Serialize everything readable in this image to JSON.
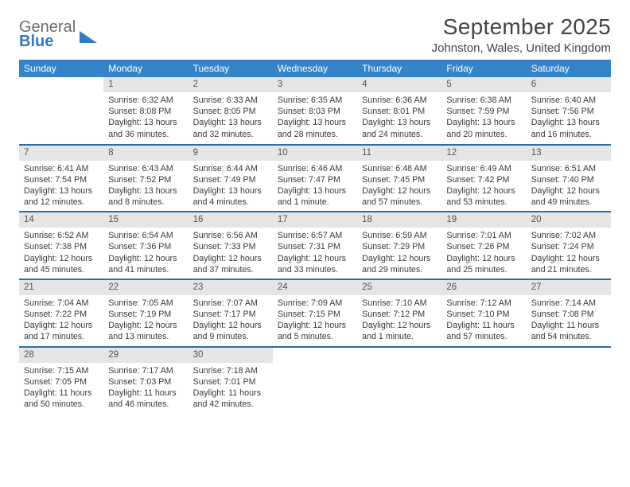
{
  "logo": {
    "line1": "General",
    "line2": "Blue"
  },
  "title": "September 2025",
  "subtitle": "Johnston, Wales, United Kingdom",
  "colors": {
    "header_bg": "#3584c7",
    "header_text": "#ffffff",
    "daynum_bg": "#e5e5e5",
    "rule": "#2f6ea5",
    "text": "#3a3a3a",
    "logo_gray": "#6b6b6b",
    "logo_blue": "#2f7ac0"
  },
  "weekdays": [
    "Sunday",
    "Monday",
    "Tuesday",
    "Wednesday",
    "Thursday",
    "Friday",
    "Saturday"
  ],
  "weeks": [
    [
      null,
      {
        "n": "1",
        "sr": "Sunrise: 6:32 AM",
        "ss": "Sunset: 8:08 PM",
        "dl": "Daylight: 13 hours and 36 minutes."
      },
      {
        "n": "2",
        "sr": "Sunrise: 6:33 AM",
        "ss": "Sunset: 8:05 PM",
        "dl": "Daylight: 13 hours and 32 minutes."
      },
      {
        "n": "3",
        "sr": "Sunrise: 6:35 AM",
        "ss": "Sunset: 8:03 PM",
        "dl": "Daylight: 13 hours and 28 minutes."
      },
      {
        "n": "4",
        "sr": "Sunrise: 6:36 AM",
        "ss": "Sunset: 8:01 PM",
        "dl": "Daylight: 13 hours and 24 minutes."
      },
      {
        "n": "5",
        "sr": "Sunrise: 6:38 AM",
        "ss": "Sunset: 7:59 PM",
        "dl": "Daylight: 13 hours and 20 minutes."
      },
      {
        "n": "6",
        "sr": "Sunrise: 6:40 AM",
        "ss": "Sunset: 7:56 PM",
        "dl": "Daylight: 13 hours and 16 minutes."
      }
    ],
    [
      {
        "n": "7",
        "sr": "Sunrise: 6:41 AM",
        "ss": "Sunset: 7:54 PM",
        "dl": "Daylight: 13 hours and 12 minutes."
      },
      {
        "n": "8",
        "sr": "Sunrise: 6:43 AM",
        "ss": "Sunset: 7:52 PM",
        "dl": "Daylight: 13 hours and 8 minutes."
      },
      {
        "n": "9",
        "sr": "Sunrise: 6:44 AM",
        "ss": "Sunset: 7:49 PM",
        "dl": "Daylight: 13 hours and 4 minutes."
      },
      {
        "n": "10",
        "sr": "Sunrise: 6:46 AM",
        "ss": "Sunset: 7:47 PM",
        "dl": "Daylight: 13 hours and 1 minute."
      },
      {
        "n": "11",
        "sr": "Sunrise: 6:48 AM",
        "ss": "Sunset: 7:45 PM",
        "dl": "Daylight: 12 hours and 57 minutes."
      },
      {
        "n": "12",
        "sr": "Sunrise: 6:49 AM",
        "ss": "Sunset: 7:42 PM",
        "dl": "Daylight: 12 hours and 53 minutes."
      },
      {
        "n": "13",
        "sr": "Sunrise: 6:51 AM",
        "ss": "Sunset: 7:40 PM",
        "dl": "Daylight: 12 hours and 49 minutes."
      }
    ],
    [
      {
        "n": "14",
        "sr": "Sunrise: 6:52 AM",
        "ss": "Sunset: 7:38 PM",
        "dl": "Daylight: 12 hours and 45 minutes."
      },
      {
        "n": "15",
        "sr": "Sunrise: 6:54 AM",
        "ss": "Sunset: 7:36 PM",
        "dl": "Daylight: 12 hours and 41 minutes."
      },
      {
        "n": "16",
        "sr": "Sunrise: 6:56 AM",
        "ss": "Sunset: 7:33 PM",
        "dl": "Daylight: 12 hours and 37 minutes."
      },
      {
        "n": "17",
        "sr": "Sunrise: 6:57 AM",
        "ss": "Sunset: 7:31 PM",
        "dl": "Daylight: 12 hours and 33 minutes."
      },
      {
        "n": "18",
        "sr": "Sunrise: 6:59 AM",
        "ss": "Sunset: 7:29 PM",
        "dl": "Daylight: 12 hours and 29 minutes."
      },
      {
        "n": "19",
        "sr": "Sunrise: 7:01 AM",
        "ss": "Sunset: 7:26 PM",
        "dl": "Daylight: 12 hours and 25 minutes."
      },
      {
        "n": "20",
        "sr": "Sunrise: 7:02 AM",
        "ss": "Sunset: 7:24 PM",
        "dl": "Daylight: 12 hours and 21 minutes."
      }
    ],
    [
      {
        "n": "21",
        "sr": "Sunrise: 7:04 AM",
        "ss": "Sunset: 7:22 PM",
        "dl": "Daylight: 12 hours and 17 minutes."
      },
      {
        "n": "22",
        "sr": "Sunrise: 7:05 AM",
        "ss": "Sunset: 7:19 PM",
        "dl": "Daylight: 12 hours and 13 minutes."
      },
      {
        "n": "23",
        "sr": "Sunrise: 7:07 AM",
        "ss": "Sunset: 7:17 PM",
        "dl": "Daylight: 12 hours and 9 minutes."
      },
      {
        "n": "24",
        "sr": "Sunrise: 7:09 AM",
        "ss": "Sunset: 7:15 PM",
        "dl": "Daylight: 12 hours and 5 minutes."
      },
      {
        "n": "25",
        "sr": "Sunrise: 7:10 AM",
        "ss": "Sunset: 7:12 PM",
        "dl": "Daylight: 12 hours and 1 minute."
      },
      {
        "n": "26",
        "sr": "Sunrise: 7:12 AM",
        "ss": "Sunset: 7:10 PM",
        "dl": "Daylight: 11 hours and 57 minutes."
      },
      {
        "n": "27",
        "sr": "Sunrise: 7:14 AM",
        "ss": "Sunset: 7:08 PM",
        "dl": "Daylight: 11 hours and 54 minutes."
      }
    ],
    [
      {
        "n": "28",
        "sr": "Sunrise: 7:15 AM",
        "ss": "Sunset: 7:05 PM",
        "dl": "Daylight: 11 hours and 50 minutes."
      },
      {
        "n": "29",
        "sr": "Sunrise: 7:17 AM",
        "ss": "Sunset: 7:03 PM",
        "dl": "Daylight: 11 hours and 46 minutes."
      },
      {
        "n": "30",
        "sr": "Sunrise: 7:18 AM",
        "ss": "Sunset: 7:01 PM",
        "dl": "Daylight: 11 hours and 42 minutes."
      },
      null,
      null,
      null,
      null
    ]
  ]
}
